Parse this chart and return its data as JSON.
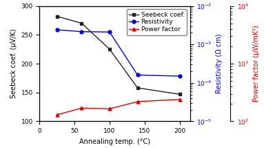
{
  "x": [
    25,
    60,
    100,
    140,
    200
  ],
  "seebeck": [
    282,
    270,
    225,
    158,
    147
  ],
  "resistivity": [
    0.0024,
    0.00215,
    0.0021,
    0.00016,
    0.00015
  ],
  "power_factor_x": [
    25,
    60,
    100,
    140,
    200
  ],
  "power_factor": [
    130.0,
    170.0,
    165.0,
    220.0,
    240.0
  ],
  "seebeck_color": "#222222",
  "resistivity_color": "#0000dd",
  "power_factor_color": "#dd0000",
  "xlabel": "Annealing temp. (°C)",
  "ylabel_left": "Seebeck coef. (μV/K)",
  "ylabel_right_blue": "Resistivity (Ω cm)",
  "ylabel_right_red": "Power factor (μW/mK²)",
  "legend_labels": [
    "Seebeck coef.",
    "Resistivity",
    "Power factor"
  ],
  "ylim_left": [
    100,
    300
  ],
  "xlim": [
    0,
    215
  ],
  "resistivity_ylim": [
    1e-05,
    0.01
  ],
  "power_factor_ylim": [
    100.0,
    10000.0
  ],
  "label_fontsize": 7,
  "tick_fontsize": 6.5,
  "legend_fontsize": 6.5
}
